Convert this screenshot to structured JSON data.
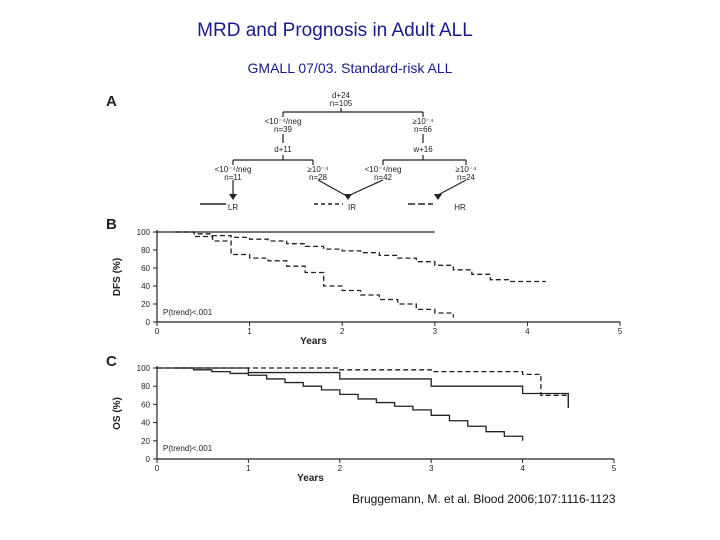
{
  "slide": {
    "title": "MRD and Prognosis in Adult ALL",
    "subtitle": "GMALL 07/03. Standard-risk ALL",
    "citation": "Bruggemann, M. et al. Blood 2006;107:1116-1123"
  },
  "panel_a": {
    "label": "A",
    "root": {
      "line1": "d+24",
      "line2": "n=105"
    },
    "level1": [
      {
        "line1": "<10⁻⁴/neg",
        "line2": "n=39"
      },
      {
        "line1": "≥10⁻⁴",
        "line2": "n=66"
      }
    ],
    "level2_heads": [
      "d+11",
      "w+16"
    ],
    "level3": [
      {
        "line1": "<10⁻⁴/neg",
        "line2": "n=11"
      },
      {
        "line1": "≥10⁻⁴",
        "line2": "n=28"
      },
      {
        "line1": "<10⁻⁴/neg",
        "line2": "n=42"
      },
      {
        "line1": "≥10⁻⁴",
        "line2": "n=24"
      }
    ],
    "groups": [
      "LR",
      "IR",
      "HR"
    ]
  },
  "chart_data": [
    {
      "type": "line",
      "panel": "B",
      "xlabel": "Years",
      "ylabel": "DFS (%)",
      "xlim": [
        0,
        5
      ],
      "ylim": [
        0,
        100
      ],
      "xticks": [
        "0",
        "1",
        "2",
        "3",
        "4",
        "5"
      ],
      "yticks": [
        "0",
        "20",
        "40",
        "60",
        "80",
        "100"
      ],
      "annotation": "P(trend)<.001",
      "series": [
        {
          "name": "LR",
          "style": "solid",
          "x": [
            0,
            1,
            2,
            3
          ],
          "y": [
            100,
            100,
            100,
            100
          ]
        },
        {
          "name": "IR",
          "style": "dashed",
          "x": [
            0.2,
            0.4,
            0.6,
            0.8,
            1.0,
            1.2,
            1.4,
            1.6,
            1.8,
            2.0,
            2.2,
            2.4,
            2.6,
            2.8,
            3.0,
            3.2,
            3.4,
            3.6,
            3.8,
            4.0,
            4.2
          ],
          "y": [
            100,
            98,
            96,
            94,
            92,
            90,
            87,
            84,
            81,
            79,
            77,
            74,
            71,
            67,
            63,
            58,
            53,
            47,
            45,
            45,
            45
          ]
        },
        {
          "name": "HR",
          "style": "dashed",
          "x": [
            0.2,
            0.4,
            0.6,
            0.8,
            1.0,
            1.2,
            1.4,
            1.6,
            1.8,
            2.0,
            2.2,
            2.4,
            2.6,
            2.8,
            3.0,
            3.2
          ],
          "y": [
            100,
            95,
            90,
            75,
            71,
            68,
            62,
            55,
            40,
            35,
            30,
            25,
            20,
            14,
            10,
            5
          ]
        }
      ]
    },
    {
      "type": "line",
      "panel": "C",
      "xlabel": "Years",
      "ylabel": "OS (%)",
      "xlim": [
        0,
        5
      ],
      "ylim": [
        0,
        100
      ],
      "xticks": [
        "0",
        "1",
        "2",
        "3",
        "4",
        "5"
      ],
      "yticks": [
        "0",
        "20",
        "40",
        "60",
        "80",
        "100"
      ],
      "annotation": "P(trend)<.001",
      "series": [
        {
          "name": "LR",
          "style": "dashed",
          "x": [
            0,
            1,
            2,
            3,
            4,
            4.2,
            4.5
          ],
          "y": [
            100,
            100,
            98,
            96,
            93,
            70,
            56
          ]
        },
        {
          "name": "IR",
          "style": "solid",
          "x": [
            0,
            1,
            2,
            3,
            4,
            4.5
          ],
          "y": [
            100,
            95,
            88,
            80,
            72,
            56
          ]
        },
        {
          "name": "HR",
          "style": "solid",
          "x": [
            0.2,
            0.4,
            0.6,
            0.8,
            1.0,
            1.2,
            1.4,
            1.6,
            1.8,
            2.0,
            2.2,
            2.4,
            2.6,
            2.8,
            3.0,
            3.2,
            3.4,
            3.6,
            3.8,
            4.0
          ],
          "y": [
            100,
            98,
            96,
            94,
            92,
            88,
            84,
            80,
            76,
            71,
            66,
            62,
            58,
            54,
            48,
            42,
            36,
            30,
            25,
            20
          ]
        }
      ]
    }
  ]
}
